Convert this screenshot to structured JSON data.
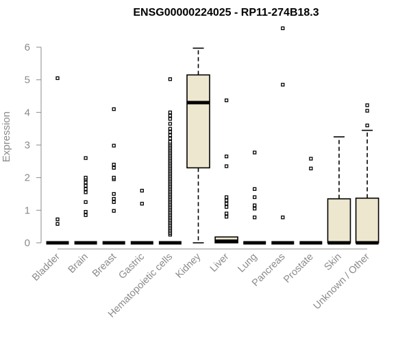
{
  "chart_data": {
    "type": "box",
    "title": "ENSG00000224025 - RP11-274B18.3",
    "ylabel": "Expression",
    "xlabel": "",
    "ylim": [
      0,
      6
    ],
    "yticks": [
      0,
      1,
      2,
      3,
      4,
      5,
      6
    ],
    "colors": {
      "box_fill": "#ede7cf",
      "axis": "#8a8a8a"
    },
    "categories": [
      {
        "name": "Bladder",
        "q1": 0,
        "median": 0,
        "q3": 0,
        "lower": 0,
        "upper": 0,
        "outliers": [
          0.58,
          0.72,
          5.05
        ]
      },
      {
        "name": "Brain",
        "q1": 0,
        "median": 0,
        "q3": 0,
        "lower": 0,
        "upper": 0,
        "outliers": [
          0.85,
          0.95,
          1.25,
          1.55,
          1.65,
          1.75,
          1.85,
          1.95,
          2.0,
          2.6
        ]
      },
      {
        "name": "Breast",
        "q1": 0,
        "median": 0,
        "q3": 0,
        "lower": 0,
        "upper": 0,
        "outliers": [
          0.98,
          1.25,
          1.35,
          1.5,
          1.95,
          2.0,
          2.3,
          2.4,
          2.98,
          4.1
        ]
      },
      {
        "name": "Gastric",
        "q1": 0,
        "median": 0,
        "q3": 0,
        "lower": 0,
        "upper": 0,
        "outliers": [
          1.2,
          1.6
        ]
      },
      {
        "name": "Hematopoietic cells",
        "q1": 0,
        "median": 0,
        "q3": 0,
        "lower": 0,
        "upper": 0,
        "outliers": [
          0.25,
          0.3,
          0.35,
          0.4,
          0.45,
          0.5,
          0.55,
          0.6,
          0.65,
          0.7,
          0.75,
          0.8,
          0.85,
          0.9,
          0.95,
          1.0,
          1.05,
          1.1,
          1.15,
          1.2,
          1.25,
          1.3,
          1.35,
          1.4,
          1.45,
          1.5,
          1.55,
          1.6,
          1.65,
          1.7,
          1.75,
          1.8,
          1.85,
          1.9,
          1.95,
          2.0,
          2.05,
          2.1,
          2.15,
          2.2,
          2.25,
          2.3,
          2.35,
          2.4,
          2.45,
          2.5,
          2.55,
          2.6,
          2.65,
          2.7,
          2.75,
          2.8,
          2.85,
          2.9,
          2.95,
          3.0,
          3.05,
          3.1,
          3.2,
          3.3,
          3.4,
          3.5,
          3.65,
          3.8,
          3.9,
          4.0,
          5.02
        ]
      },
      {
        "name": "Kidney",
        "q1": 2.3,
        "median": 4.3,
        "q3": 5.15,
        "lower": 0,
        "upper": 5.97,
        "outliers": []
      },
      {
        "name": "Liver",
        "q1": 0,
        "median": 0.05,
        "q3": 0.18,
        "lower": 0,
        "upper": 0,
        "outliers": [
          0.8,
          0.9,
          1.1,
          1.2,
          1.3,
          1.4,
          2.35,
          2.65,
          4.37
        ]
      },
      {
        "name": "Lung",
        "q1": 0,
        "median": 0,
        "q3": 0,
        "lower": 0,
        "upper": 0,
        "outliers": [
          0.78,
          1.05,
          1.15,
          1.4,
          1.65,
          2.77
        ]
      },
      {
        "name": "Pancreas",
        "q1": 0,
        "median": 0,
        "q3": 0,
        "lower": 0,
        "upper": 0,
        "outliers": [
          0.78,
          4.85,
          6.58
        ]
      },
      {
        "name": "Prostate",
        "q1": 0,
        "median": 0,
        "q3": 0,
        "lower": 0,
        "upper": 0,
        "outliers": [
          2.28,
          2.58
        ]
      },
      {
        "name": "Skin",
        "q1": 0,
        "median": 0,
        "q3": 1.35,
        "lower": 0,
        "upper": 3.25,
        "outliers": []
      },
      {
        "name": "Unknown / Other",
        "q1": 0,
        "median": 0,
        "q3": 1.37,
        "lower": 0,
        "upper": 3.45,
        "outliers": [
          3.6,
          4.05,
          4.22
        ]
      }
    ]
  }
}
